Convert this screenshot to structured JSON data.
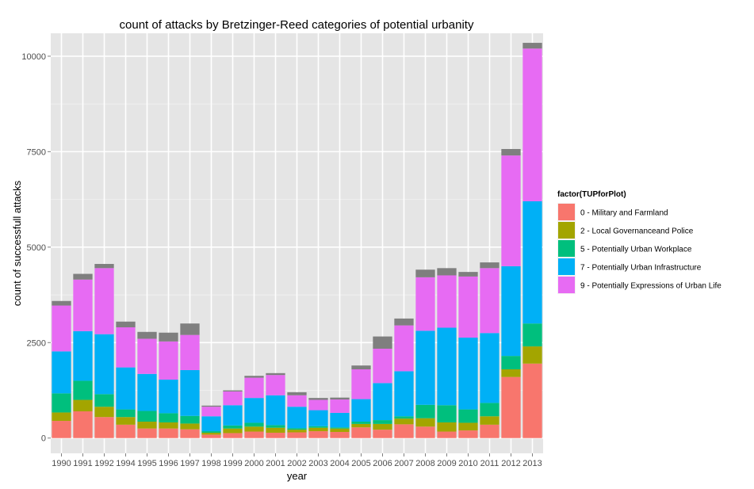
{
  "chart_data": {
    "type": "bar",
    "stacked": true,
    "title": "count of attacks by Bretzinger-Reed categories of potential urbanity",
    "xlabel": "year",
    "ylabel": "count of successfull attacks",
    "ylim": [
      -400,
      10600
    ],
    "yticks": [
      0,
      2500,
      5000,
      7500,
      10000
    ],
    "grid": true,
    "legend_position": "right",
    "legend_title": "factor(TUPforPlot)",
    "categories": [
      "1990",
      "1991",
      "1992",
      "1994",
      "1995",
      "1996",
      "1997",
      "1998",
      "1999",
      "2000",
      "2001",
      "2002",
      "2003",
      "2004",
      "2005",
      "2006",
      "2007",
      "2008",
      "2009",
      "2010",
      "2011",
      "2012",
      "2013"
    ],
    "series": [
      {
        "name": "0 - Military and Farmland",
        "color": "#F8766D",
        "values": [
          450,
          700,
          550,
          350,
          250,
          250,
          230,
          90,
          130,
          170,
          140,
          150,
          180,
          160,
          280,
          220,
          360,
          300,
          170,
          200,
          350,
          1600,
          1950
        ]
      },
      {
        "name": "2 - Local Governanceand Police",
        "color": "#A3A500",
        "values": [
          220,
          300,
          270,
          200,
          180,
          160,
          150,
          50,
          120,
          130,
          130,
          70,
          90,
          90,
          90,
          150,
          150,
          220,
          240,
          200,
          220,
          200,
          450
        ]
      },
      {
        "name": "5 - Potentially Urban Workplace",
        "color": "#00BF7D",
        "values": [
          500,
          500,
          330,
          200,
          280,
          240,
          200,
          40,
          80,
          100,
          70,
          40,
          40,
          30,
          60,
          100,
          60,
          350,
          450,
          350,
          350,
          350,
          600
        ]
      },
      {
        "name": "7 - Potentially Urban Infrastructure",
        "color": "#00B0F6",
        "values": [
          1100,
          1300,
          1570,
          1100,
          970,
          880,
          1200,
          390,
          530,
          650,
          780,
          560,
          420,
          380,
          590,
          970,
          1180,
          1940,
          2030,
          1880,
          1830,
          2350,
          3200
        ]
      },
      {
        "name": "9 - Potentially Expressions of Urban Life",
        "color": "#E76BF3",
        "values": [
          1200,
          1350,
          1730,
          1050,
          920,
          1000,
          920,
          250,
          360,
          530,
          530,
          300,
          270,
          350,
          780,
          900,
          1200,
          1400,
          1370,
          1600,
          1700,
          2900,
          4000
        ]
      },
      {
        "name": "",
        "color": "#7F7F7F",
        "values": [
          120,
          150,
          110,
          150,
          180,
          230,
          300,
          30,
          30,
          50,
          50,
          80,
          50,
          50,
          100,
          320,
          180,
          200,
          190,
          120,
          150,
          170,
          150
        ]
      }
    ]
  }
}
